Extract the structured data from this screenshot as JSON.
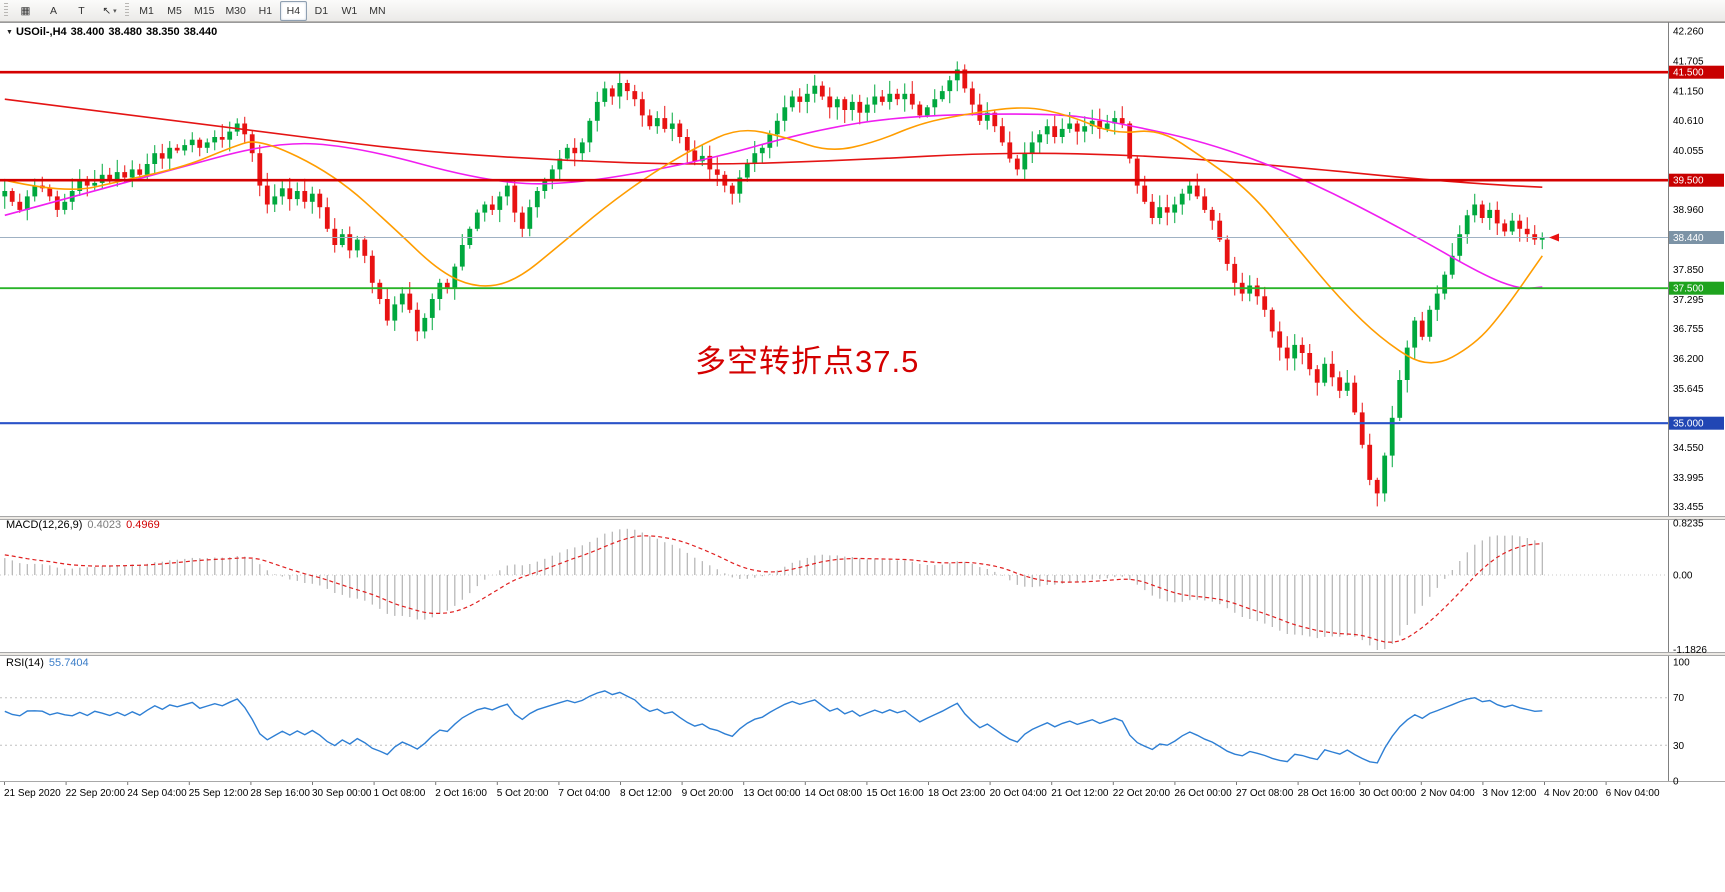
{
  "toolbar": {
    "icon_buttons": [
      {
        "name": "charts-grid-icon",
        "glyph": "▦"
      },
      {
        "name": "text-label-a-icon",
        "glyph": "A"
      },
      {
        "name": "text-label-t-icon",
        "glyph": "T"
      },
      {
        "name": "cursor-tool-icon",
        "glyph": "↖",
        "caret": "▾"
      }
    ],
    "timeframes": [
      {
        "label": "M1",
        "active": false
      },
      {
        "label": "M5",
        "active": false
      },
      {
        "label": "M15",
        "active": false
      },
      {
        "label": "M30",
        "active": false
      },
      {
        "label": "H1",
        "active": false
      },
      {
        "label": "H4",
        "active": true
      },
      {
        "label": "D1",
        "active": false
      },
      {
        "label": "W1",
        "active": false
      },
      {
        "label": "MN",
        "active": false
      }
    ]
  },
  "chart": {
    "collapse_icon": "▼",
    "symbol_period": "USOil-,H4",
    "open": "38.400",
    "high": "38.480",
    "low": "38.350",
    "close": "38.440",
    "annotation": {
      "text": "多空转折点37.5",
      "color": "#d40000"
    }
  },
  "chart_data": {
    "type": "candlestick",
    "symbol": "USOil-",
    "period": "H4",
    "first_open": 39.2,
    "closes": [
      39.3,
      39.1,
      38.95,
      39.2,
      39.4,
      39.35,
      39.2,
      38.95,
      39.1,
      39.3,
      39.5,
      39.4,
      39.45,
      39.6,
      39.5,
      39.65,
      39.55,
      39.7,
      39.6,
      39.8,
      40.0,
      39.9,
      40.1,
      40.05,
      40.15,
      40.25,
      40.1,
      40.2,
      40.3,
      40.25,
      40.4,
      40.55,
      40.35,
      40.0,
      39.4,
      39.05,
      39.2,
      39.35,
      39.15,
      39.3,
      39.1,
      39.25,
      39.0,
      38.6,
      38.3,
      38.5,
      38.2,
      38.4,
      38.1,
      37.6,
      37.3,
      36.9,
      37.2,
      37.4,
      37.1,
      36.7,
      36.95,
      37.3,
      37.6,
      37.5,
      37.9,
      38.3,
      38.6,
      38.9,
      39.05,
      38.95,
      39.2,
      39.4,
      38.9,
      38.6,
      39.0,
      39.3,
      39.5,
      39.7,
      39.9,
      40.1,
      40.0,
      40.2,
      40.6,
      40.95,
      41.2,
      41.05,
      41.3,
      41.15,
      41.0,
      40.7,
      40.5,
      40.65,
      40.45,
      40.55,
      40.3,
      40.05,
      39.85,
      39.95,
      39.7,
      39.6,
      39.4,
      39.25,
      39.55,
      39.8,
      40.0,
      40.1,
      40.35,
      40.6,
      40.85,
      41.05,
      40.95,
      41.1,
      41.25,
      41.05,
      40.85,
      41.0,
      40.8,
      40.95,
      40.75,
      40.9,
      41.05,
      40.95,
      41.1,
      41.0,
      41.1,
      40.9,
      40.7,
      40.85,
      41.0,
      41.15,
      41.35,
      41.55,
      41.2,
      40.9,
      40.6,
      40.75,
      40.5,
      40.2,
      39.9,
      39.7,
      40.0,
      40.2,
      40.35,
      40.5,
      40.3,
      40.45,
      40.55,
      40.4,
      40.5,
      40.6,
      40.45,
      40.55,
      40.65,
      40.55,
      39.9,
      39.4,
      39.1,
      38.8,
      39.0,
      38.9,
      39.05,
      39.25,
      39.4,
      39.2,
      38.95,
      38.75,
      38.4,
      37.95,
      37.6,
      37.4,
      37.55,
      37.35,
      37.1,
      36.7,
      36.4,
      36.2,
      36.45,
      36.3,
      36.0,
      35.75,
      36.1,
      35.85,
      35.6,
      35.75,
      35.2,
      34.6,
      33.95,
      33.7,
      34.4,
      35.1,
      35.8,
      36.4,
      36.9,
      36.6,
      37.1,
      37.4,
      37.75,
      38.1,
      38.5,
      38.85,
      39.05,
      38.8,
      38.95,
      38.7,
      38.55,
      38.75,
      38.6,
      38.5,
      38.4,
      38.44
    ],
    "spikes": {
      "55": {
        "low": 36.52
      },
      "82": {
        "high": 41.5
      },
      "108": {
        "high": 41.45
      },
      "127": {
        "high": 41.7
      },
      "183": {
        "low": 33.46
      }
    },
    "colors": {
      "up": "#00a83e",
      "down": "#e81212"
    },
    "levels": [
      {
        "price": 41.5,
        "label": "41.500",
        "line_color": "#d40000",
        "badge_color": "#c80000",
        "width": 2.6
      },
      {
        "price": 39.5,
        "label": "39.500",
        "line_color": "#d40000",
        "badge_color": "#c80000",
        "width": 2.6
      },
      {
        "price": 38.44,
        "label": "38.440",
        "line_color": "#9fb1c3",
        "badge_color": "#7c93a6",
        "width": 1
      },
      {
        "price": 37.5,
        "label": "37.500",
        "line_color": "#28b428",
        "badge_color": "#1ea31e",
        "width": 1.8
      },
      {
        "price": 35.0,
        "label": "35.000",
        "line_color": "#2a52c8",
        "badge_color": "#2146b4",
        "width": 2.2
      }
    ],
    "price_axis_labels": [
      "42.260",
      "41.705",
      "41.150",
      "40.610",
      "40.055",
      "38.960",
      "37.850",
      "37.295",
      "36.755",
      "36.200",
      "35.645",
      "34.550",
      "33.995",
      "33.455"
    ],
    "moving_averages": [
      {
        "name": "slow-red",
        "color": "#e41414",
        "points": [
          [
            0,
            41.0
          ],
          [
            33,
            40.43
          ],
          [
            53,
            40.06
          ],
          [
            73,
            39.87
          ],
          [
            93,
            39.78
          ],
          [
            113,
            39.87
          ],
          [
            133,
            40.02
          ],
          [
            153,
            39.96
          ],
          [
            173,
            39.73
          ],
          [
            187,
            39.54
          ],
          [
            198,
            39.42
          ],
          [
            205,
            39.37
          ]
        ]
      },
      {
        "name": "mid-magenta",
        "color": "#f01ef0",
        "points": [
          [
            0,
            38.85
          ],
          [
            20,
            39.6
          ],
          [
            36,
            40.22
          ],
          [
            47,
            40.12
          ],
          [
            64,
            39.48
          ],
          [
            75,
            39.4
          ],
          [
            93,
            39.85
          ],
          [
            107,
            40.4
          ],
          [
            120,
            40.7
          ],
          [
            140,
            40.74
          ],
          [
            147,
            40.6
          ],
          [
            160,
            40.22
          ],
          [
            173,
            39.55
          ],
          [
            187,
            38.55
          ],
          [
            197,
            37.75
          ],
          [
            202,
            37.48
          ],
          [
            205,
            37.52
          ]
        ]
      },
      {
        "name": "fast-orange",
        "color": "#ff9d00",
        "points": [
          [
            0,
            39.5
          ],
          [
            8,
            39.25
          ],
          [
            16,
            39.5
          ],
          [
            24,
            39.75
          ],
          [
            30,
            40.1
          ],
          [
            34,
            40.28
          ],
          [
            44,
            39.6
          ],
          [
            52,
            38.6
          ],
          [
            58,
            37.8
          ],
          [
            63,
            37.5
          ],
          [
            68,
            37.62
          ],
          [
            74,
            38.3
          ],
          [
            80,
            39.0
          ],
          [
            86,
            39.6
          ],
          [
            92,
            40.1
          ],
          [
            98,
            40.48
          ],
          [
            104,
            40.3
          ],
          [
            110,
            40.02
          ],
          [
            116,
            40.2
          ],
          [
            122,
            40.55
          ],
          [
            128,
            40.72
          ],
          [
            136,
            40.88
          ],
          [
            142,
            40.7
          ],
          [
            148,
            40.35
          ],
          [
            154,
            40.45
          ],
          [
            160,
            39.9
          ],
          [
            166,
            39.3
          ],
          [
            172,
            38.3
          ],
          [
            178,
            37.3
          ],
          [
            184,
            36.5
          ],
          [
            190,
            36.0
          ],
          [
            196,
            36.45
          ],
          [
            200,
            37.1
          ],
          [
            205,
            38.1
          ]
        ]
      }
    ],
    "macd": {
      "label": "MACD(12,26,9)",
      "value_main": "0.4023",
      "value_signal": "0.4969",
      "params": [
        12,
        26,
        9
      ],
      "axis_labels": [
        "0.8235",
        "0.00",
        "-1.1826"
      ],
      "axis_values": [
        0.8235,
        0,
        -1.1826
      ]
    },
    "rsi": {
      "label": "RSI(14)",
      "value": "55.7404",
      "period": 14,
      "axis_labels": [
        "100",
        "70",
        "30",
        "0"
      ],
      "axis_values": [
        100,
        70,
        30,
        0
      ],
      "levels": [
        70,
        30
      ]
    },
    "time_labels": [
      "21 Sep 2020",
      "22 Sep 20:00",
      "24 Sep 04:00",
      "25 Sep 12:00",
      "28 Sep 16:00",
      "30 Sep 00:00",
      "1 Oct 08:00",
      "2 Oct 16:00",
      "5 Oct 20:00",
      "7 Oct 04:00",
      "8 Oct 12:00",
      "9 Oct 20:00",
      "13 Oct 00:00",
      "14 Oct 08:00",
      "15 Oct 16:00",
      "18 Oct 23:00",
      "20 Oct 04:00",
      "21 Oct 12:00",
      "22 Oct 20:00",
      "26 Oct 00:00",
      "27 Oct 08:00",
      "28 Oct 16:00",
      "30 Oct 00:00",
      "2 Nov 04:00",
      "3 Nov 12:00",
      "4 Nov 20:00",
      "6 Nov 04:00"
    ]
  }
}
